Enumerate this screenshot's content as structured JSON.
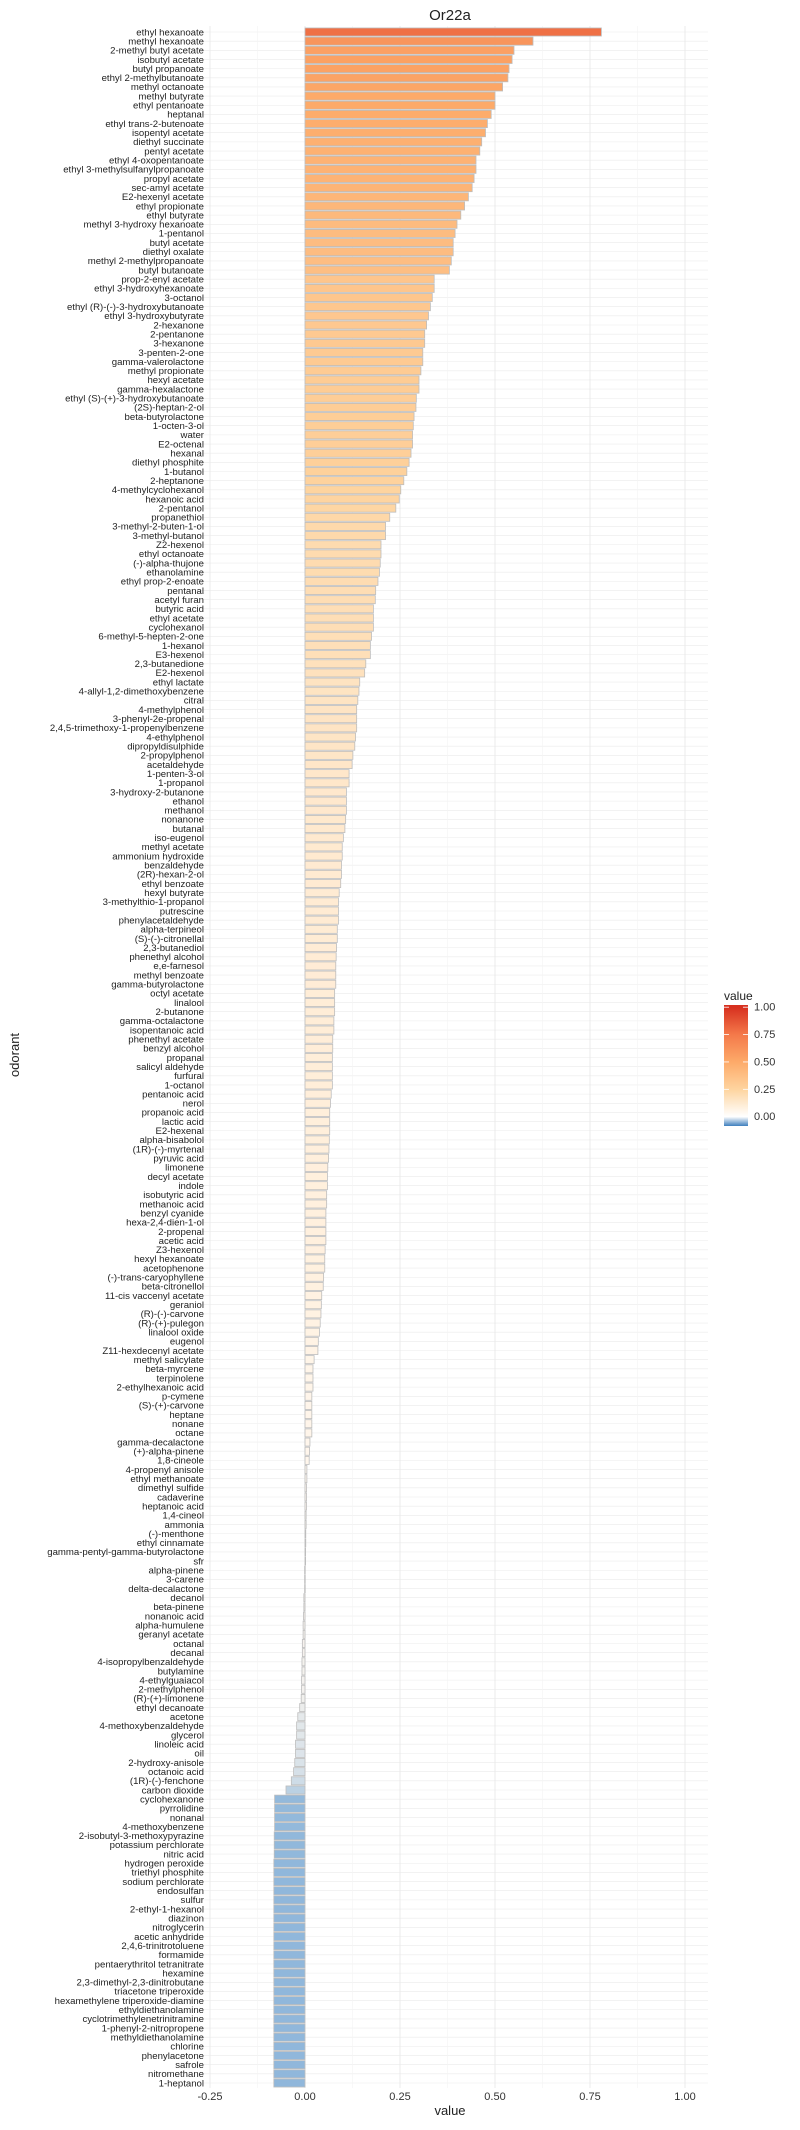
{
  "chart_data": {
    "type": "bar",
    "orientation": "horizontal",
    "title": "Or22a",
    "xlabel": "value",
    "ylabel": "odorant",
    "xlim": [
      -0.25,
      1.0
    ],
    "xticks": [
      -0.25,
      0.0,
      0.25,
      0.5,
      0.75,
      1.0
    ],
    "xtick_labels": [
      "-0.25",
      "0.00",
      "0.25",
      "0.50",
      "0.75",
      "1.00"
    ],
    "grid": true,
    "legend": {
      "title": "value",
      "position": "right",
      "tick_labels": [
        "1.00",
        "0.75",
        "0.50",
        "0.25",
        "0.00"
      ],
      "ticks": [
        1.0,
        0.75,
        0.5,
        0.25,
        0.0
      ],
      "range": [
        -0.085,
        1.02
      ]
    },
    "color_scale": [
      [
        -0.085,
        "#8cb5da"
      ],
      [
        0,
        "#fff8f0"
      ],
      [
        0.25,
        "#fed49f"
      ],
      [
        0.5,
        "#fdaa69"
      ],
      [
        0.78,
        "#ef7045"
      ],
      [
        1.0,
        "#d7301f"
      ]
    ],
    "legend_gradient": [
      [
        -0.085,
        "#3f7fbd"
      ],
      [
        0,
        "#ffffff"
      ],
      [
        0.25,
        "#fed49f"
      ],
      [
        0.5,
        "#fdaa69"
      ],
      [
        0.75,
        "#f4794a"
      ],
      [
        1.0,
        "#d7301f"
      ]
    ],
    "bar_outline": "#bdbdbd",
    "categories": [
      "ethyl hexanoate",
      "methyl hexanoate",
      "2-methyl butyl acetate",
      "isobutyl acetate",
      "butyl propanoate",
      "ethyl 2-methylbutanoate",
      "methyl octanoate",
      "methyl butyrate",
      "ethyl pentanoate",
      "heptanal",
      "ethyl trans-2-butenoate",
      "isopentyl acetate",
      "diethyl succinate",
      "pentyl acetate",
      "ethyl 4-oxopentanoate",
      "ethyl 3-methylsulfanylpropanoate",
      "propyl acetate",
      "sec-amyl acetate",
      "E2-hexenyl acetate",
      "ethyl propionate",
      "ethyl butyrate",
      "methyl 3-hydroxy hexanoate",
      "1-pentanol",
      "butyl acetate",
      "diethyl oxalate",
      "methyl 2-methylpropanoate",
      "butyl butanoate",
      "prop-2-enyl acetate",
      "ethyl 3-hydroxyhexanoate",
      "3-octanol",
      "ethyl (R)-(-)-3-hydroxybutanoate",
      "ethyl 3-hydroxybutyrate",
      "2-hexanone",
      "2-pentanone",
      "3-hexanone",
      "3-penten-2-one",
      "gamma-valerolactone",
      "methyl propionate",
      "hexyl acetate",
      "gamma-hexalactone",
      "ethyl (S)-(+)-3-hydroxybutanoate",
      "(2S)-heptan-2-ol",
      "beta-butyrolactone",
      "1-octen-3-ol",
      "water",
      "E2-octenal",
      "hexanal",
      "diethyl phosphite",
      "1-butanol",
      "2-heptanone",
      "4-methylcyclohexanol",
      "hexanoic acid",
      "2-pentanol",
      "propanethiol",
      "3-methyl-2-buten-1-ol",
      "3-methyl-butanol",
      "Z2-hexenol",
      "ethyl octanoate",
      "(-)-alpha-thujone",
      "ethanolamine",
      "ethyl prop-2-enoate",
      "pentanal",
      "acetyl furan",
      "butyric acid",
      "ethyl acetate",
      "cyclohexanol",
      "6-methyl-5-hepten-2-one",
      "1-hexanol",
      "E3-hexenol",
      "2,3-butanedione",
      "E2-hexenol",
      "ethyl lactate",
      "4-allyl-1,2-dimethoxybenzene",
      "citral",
      "4-methylphenol",
      "3-phenyl-2e-propenal",
      "2,4,5-trimethoxy-1-propenylbenzene",
      "4-ethylphenol",
      "dipropyldisulphide",
      "2-propylphenol",
      "acetaldehyde",
      "1-penten-3-ol",
      "1-propanol",
      "3-hydroxy-2-butanone",
      "ethanol",
      "methanol",
      "nonanone",
      "butanal",
      "iso-eugenol",
      "methyl acetate",
      "ammonium hydroxide",
      "benzaldehyde",
      "(2R)-hexan-2-ol",
      "ethyl benzoate",
      "hexyl butyrate",
      "3-methylthio-1-propanol",
      "putrescine",
      "phenylacetaldehyde",
      "alpha-terpineol",
      "(S)-(-)-citronellal",
      "2,3-butanediol",
      "phenethyl alcohol",
      "e,e-farnesol",
      "methyl benzoate",
      "gamma-butyrolactone",
      "octyl acetate",
      "linalool",
      "2-butanone",
      "gamma-octalactone",
      "isopentanoic acid",
      "phenethyl acetate",
      "benzyl alcohol",
      "propanal",
      "salicyl aldehyde",
      "furfural",
      "1-octanol",
      "pentanoic acid",
      "nerol",
      "propanoic acid",
      "lactic acid",
      "E2-hexenal",
      "alpha-bisabolol",
      "(1R)-(-)-myrtenal",
      "pyruvic acid",
      "limonene",
      "decyl acetate",
      "indole",
      "isobutyric acid",
      "methanoic acid",
      "benzyl cyanide",
      "hexa-2,4-dien-1-ol",
      "2-propenal",
      "acetic acid",
      "Z3-hexenol",
      "hexyl hexanoate",
      "acetophenone",
      "(-)-trans-caryophyllene",
      "beta-citronellol",
      "11-cis vaccenyl acetate",
      "geraniol",
      "(R)-(-)-carvone",
      "(R)-(+)-pulegon",
      "linalool oxide",
      "eugenol",
      "Z11-hexdecenyl acetate",
      "methyl salicylate",
      "beta-myrcene",
      "terpinolene",
      "2-ethylhexanoic acid",
      "p-cymene",
      "(S)-(+)-carvone",
      "heptane",
      "nonane",
      "octane",
      "gamma-decalactone",
      "(+)-alpha-pinene",
      "1,8-cineole",
      "4-propenyl anisole",
      "ethyl methanoate",
      "dimethyl sulfide",
      "cadaverine",
      "heptanoic acid",
      "1,4-cineol",
      "ammonia",
      "(-)-menthone",
      "ethyl cinnamate",
      "gamma-pentyl-gamma-butyrolactone",
      "sfr",
      "alpha-pinene",
      "3-carene",
      "delta-decalactone",
      "decanol",
      "beta-pinene",
      "nonanoic acid",
      "alpha-humulene",
      "geranyl acetate",
      "octanal",
      "decanal",
      "4-isopropylbenzaldehyde",
      "butylamine",
      "4-ethylguaiacol",
      "2-methylphenol",
      "(R)-(+)-limonene",
      "ethyl decanoate",
      "acetone",
      "4-methoxybenzaldehyde",
      "glycerol",
      "linoleic acid",
      "oil",
      "2-hydroxy-anisole",
      "octanoic acid",
      "(1R)-(-)-fenchone",
      "carbon dioxide",
      "cyclohexanone",
      "pyrrolidine",
      "nonanal",
      "4-methoxybenzene",
      "2-isobutyl-3-methoxypyrazine",
      "potassium perchlorate",
      "nitric acid",
      "hydrogen peroxide",
      "triethyl phosphite",
      "sodium perchlorate",
      "endosulfan",
      "sulfur",
      "2-ethyl-1-hexanol",
      "diazinon",
      "nitroglycerin",
      "acetic anhydride",
      "2,4,6-trinitrotoluene",
      "formamide",
      "pentaerythritol tetranitrate",
      "hexamine",
      "2,3-dimethyl-2,3-dinitrobutane",
      "triacetone triperoxide",
      "hexamethylene triperoxide-diamine",
      "ethyldiethanolamine",
      "cyclotrimethylenetrinitramine",
      "1-phenyl-2-nitropropene",
      "methyldiethanolamine",
      "chlorine",
      "phenylacetone",
      "safrole",
      "nitromethane",
      "1-heptanol"
    ],
    "values": [
      0.78,
      0.6,
      0.55,
      0.545,
      0.537,
      0.534,
      0.52,
      0.5,
      0.5,
      0.49,
      0.48,
      0.475,
      0.465,
      0.46,
      0.45,
      0.45,
      0.445,
      0.44,
      0.43,
      0.42,
      0.41,
      0.4,
      0.395,
      0.39,
      0.39,
      0.385,
      0.38,
      0.34,
      0.34,
      0.335,
      0.33,
      0.325,
      0.32,
      0.315,
      0.315,
      0.31,
      0.31,
      0.305,
      0.3,
      0.3,
      0.293,
      0.292,
      0.287,
      0.285,
      0.283,
      0.283,
      0.279,
      0.274,
      0.268,
      0.26,
      0.252,
      0.248,
      0.239,
      0.223,
      0.212,
      0.212,
      0.2,
      0.2,
      0.198,
      0.196,
      0.192,
      0.186,
      0.185,
      0.18,
      0.18,
      0.18,
      0.175,
      0.172,
      0.172,
      0.16,
      0.157,
      0.144,
      0.142,
      0.139,
      0.136,
      0.136,
      0.136,
      0.133,
      0.131,
      0.126,
      0.124,
      0.116,
      0.116,
      0.109,
      0.109,
      0.109,
      0.107,
      0.105,
      0.101,
      0.098,
      0.098,
      0.096,
      0.096,
      0.094,
      0.09,
      0.088,
      0.088,
      0.088,
      0.085,
      0.085,
      0.083,
      0.082,
      0.081,
      0.081,
      0.081,
      0.078,
      0.078,
      0.078,
      0.076,
      0.076,
      0.073,
      0.073,
      0.072,
      0.072,
      0.072,
      0.072,
      0.069,
      0.067,
      0.065,
      0.065,
      0.065,
      0.064,
      0.063,
      0.062,
      0.06,
      0.059,
      0.059,
      0.057,
      0.057,
      0.055,
      0.055,
      0.055,
      0.055,
      0.053,
      0.052,
      0.052,
      0.049,
      0.048,
      0.044,
      0.043,
      0.042,
      0.04,
      0.038,
      0.035,
      0.034,
      0.024,
      0.021,
      0.021,
      0.021,
      0.018,
      0.018,
      0.018,
      0.018,
      0.018,
      0.013,
      0.012,
      0.011,
      0.005,
      0.005,
      0.004,
      0.004,
      0.004,
      0.003,
      0.003,
      0.002,
      0.002,
      0.001,
      0.0,
      -0.001,
      -0.001,
      -0.001,
      -0.003,
      -0.003,
      -0.004,
      -0.005,
      -0.005,
      -0.007,
      -0.007,
      -0.008,
      -0.008,
      -0.009,
      -0.009,
      -0.01,
      -0.014,
      -0.019,
      -0.022,
      -0.022,
      -0.025,
      -0.025,
      -0.027,
      -0.03,
      -0.036,
      -0.05,
      -0.08,
      -0.08,
      -0.08,
      -0.08,
      -0.081,
      -0.081,
      -0.081,
      -0.082,
      -0.082,
      -0.082,
      -0.082,
      -0.082,
      -0.082,
      -0.082,
      -0.082,
      -0.082,
      -0.082,
      -0.082,
      -0.082,
      -0.082,
      -0.082,
      -0.082,
      -0.082,
      -0.082,
      -0.082,
      -0.082,
      -0.082,
      -0.082,
      -0.082,
      -0.082,
      -0.082,
      -0.082
    ]
  }
}
